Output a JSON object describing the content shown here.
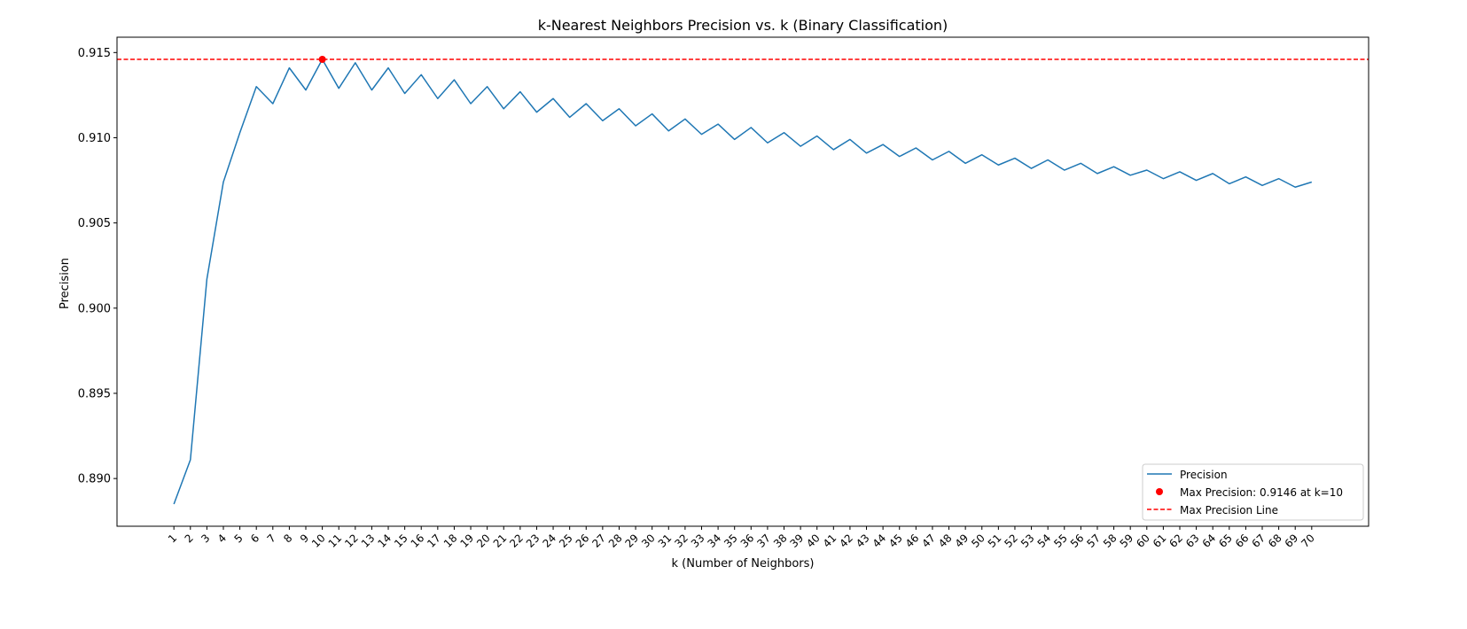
{
  "chart_data": {
    "type": "line",
    "title": "k-Nearest Neighbors Precision vs. k (Binary Classification)",
    "xlabel": "k (Number of Neighbors)",
    "ylabel": "Precision",
    "ylim": [
      0.8872,
      0.9159
    ],
    "yticks": [
      0.89,
      0.895,
      0.9,
      0.905,
      0.91,
      0.915
    ],
    "ytick_labels": [
      "0.890",
      "0.895",
      "0.900",
      "0.905",
      "0.910",
      "0.915"
    ],
    "x": [
      1,
      2,
      3,
      4,
      5,
      6,
      7,
      8,
      9,
      10,
      11,
      12,
      13,
      14,
      15,
      16,
      17,
      18,
      19,
      20,
      21,
      22,
      23,
      24,
      25,
      26,
      27,
      28,
      29,
      30,
      31,
      32,
      33,
      34,
      35,
      36,
      37,
      38,
      39,
      40,
      41,
      42,
      43,
      44,
      45,
      46,
      47,
      48,
      49,
      50,
      51,
      52,
      53,
      54,
      55,
      56,
      57,
      58,
      59,
      60,
      61,
      62,
      63,
      64,
      65,
      66,
      67,
      68,
      69,
      70
    ],
    "series": [
      {
        "name": "Precision",
        "color": "#1f77b4",
        "values": [
          0.8885,
          0.8911,
          0.9017,
          0.9074,
          0.9103,
          0.913,
          0.912,
          0.9141,
          0.9128,
          0.9146,
          0.9129,
          0.9144,
          0.9128,
          0.9141,
          0.9126,
          0.9137,
          0.9123,
          0.9134,
          0.912,
          0.913,
          0.9117,
          0.9127,
          0.9115,
          0.9123,
          0.9112,
          0.912,
          0.911,
          0.9117,
          0.9107,
          0.9114,
          0.9104,
          0.9111,
          0.9102,
          0.9108,
          0.9099,
          0.9106,
          0.9097,
          0.9103,
          0.9095,
          0.9101,
          0.9093,
          0.9099,
          0.9091,
          0.9096,
          0.9089,
          0.9094,
          0.9087,
          0.9092,
          0.9085,
          0.909,
          0.9084,
          0.9088,
          0.9082,
          0.9087,
          0.9081,
          0.9085,
          0.9079,
          0.9083,
          0.9078,
          0.9081,
          0.9076,
          0.908,
          0.9075,
          0.9079,
          0.9073,
          0.9077,
          0.9072,
          0.9076,
          0.9071,
          0.9074
        ]
      }
    ],
    "max_point": {
      "label": "Max Precision: 0.9146 at k=10",
      "x": 10,
      "y": 0.9146,
      "color": "#ff0000"
    },
    "max_line": {
      "label": "Max Precision Line",
      "y": 0.9146,
      "color": "#ff0000"
    },
    "legend_placement": "lower-right",
    "grid": false
  }
}
